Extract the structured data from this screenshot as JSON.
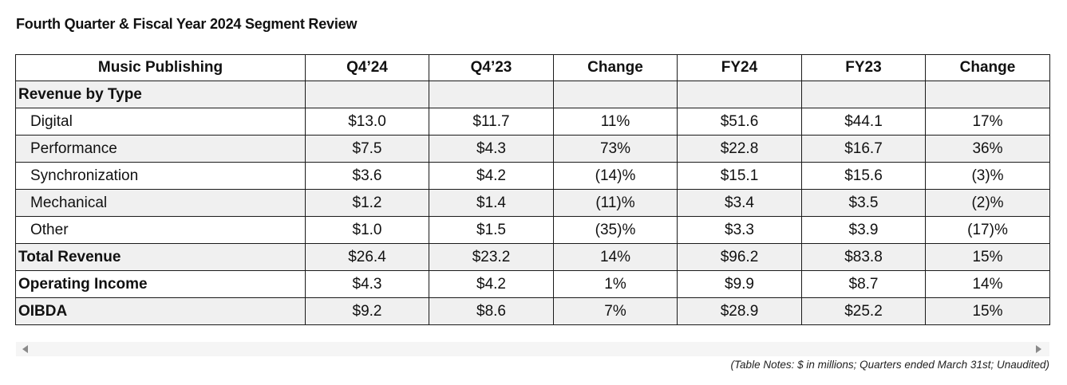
{
  "title": "Fourth Quarter & Fiscal Year 2024 Segment Review",
  "table": {
    "headers": [
      "Music Publishing",
      "Q4’24",
      "Q4’23",
      "Change",
      "FY24",
      "FY23",
      "Change"
    ],
    "rows": [
      {
        "label": "Revenue by Type",
        "cells": [
          "",
          "",
          "",
          "",
          "",
          ""
        ]
      },
      {
        "label": "Digital",
        "cells": [
          "$13.0",
          "$11.7",
          "11%",
          "$51.6",
          "$44.1",
          "17%"
        ]
      },
      {
        "label": "Performance",
        "cells": [
          "$7.5",
          "$4.3",
          "73%",
          "$22.8",
          "$16.7",
          "36%"
        ]
      },
      {
        "label": "Synchronization",
        "cells": [
          "$3.6",
          "$4.2",
          "(14)%",
          "$15.1",
          "$15.6",
          "(3)%"
        ]
      },
      {
        "label": "Mechanical",
        "cells": [
          "$1.2",
          "$1.4",
          "(11)%",
          "$3.4",
          "$3.5",
          "(2)%"
        ]
      },
      {
        "label": "Other",
        "cells": [
          "$1.0",
          "$1.5",
          "(35)%",
          "$3.3",
          "$3.9",
          "(17)%"
        ]
      },
      {
        "label": "Total Revenue",
        "cells": [
          "$26.4",
          "$23.2",
          "14%",
          "$96.2",
          "$83.8",
          "15%"
        ]
      },
      {
        "label": "Operating Income",
        "cells": [
          "$4.3",
          "$4.2",
          "1%",
          "$9.9",
          "$8.7",
          "14%"
        ]
      },
      {
        "label": "OIBDA",
        "cells": [
          "$9.2",
          "$8.6",
          "7%",
          "$28.9",
          "$25.2",
          "15%"
        ]
      }
    ]
  },
  "notes": "(Table Notes: $ in millions; Quarters ended March 31st; Unaudited)"
}
